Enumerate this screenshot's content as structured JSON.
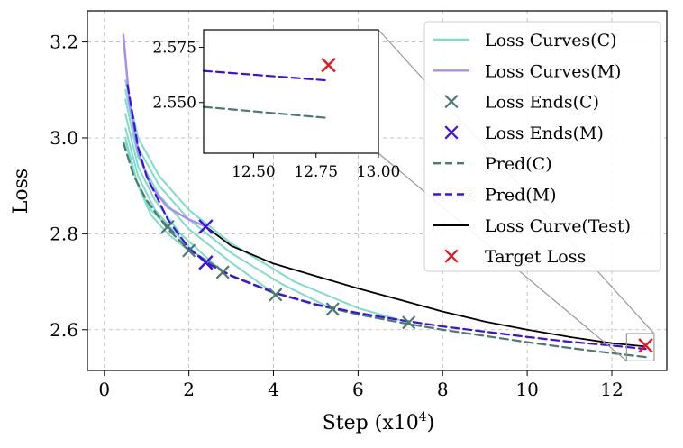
{
  "chart_data": {
    "type": "line",
    "title": "",
    "xlabel": "Step (x10",
    "xlabel_sup": "4",
    "xlabel_close": ")",
    "ylabel": "Loss",
    "xlim": [
      -0.4,
      13.3
    ],
    "ylim": [
      2.515,
      3.265
    ],
    "xticks": [
      0,
      2,
      4,
      6,
      8,
      10,
      12
    ],
    "yticks": [
      2.6,
      2.8,
      3.0,
      3.2
    ],
    "ytick_labels": [
      "2.6",
      "2.8",
      "3.0",
      "3.2"
    ],
    "grid": true,
    "colors": {
      "curves_c": "#7fdcc8",
      "curves_m": "#a98ef0",
      "ends_c": "#4a7a72",
      "ends_m": "#3d10e0",
      "pred_c": "#4a7a72",
      "pred_m": "#3d10e0",
      "test": "#000000",
      "target": "#e8141e"
    },
    "loss_curves_c": [
      {
        "x": [
          0.5,
          0.8,
          1.1,
          1.4,
          1.5
        ],
        "y": [
          2.99,
          2.9,
          2.85,
          2.825,
          2.815
        ]
      },
      {
        "x": [
          0.5,
          0.8,
          1.1,
          1.5,
          2.0
        ],
        "y": [
          3.0,
          2.9,
          2.84,
          2.8,
          2.765
        ]
      },
      {
        "x": [
          0.5,
          0.8,
          1.2,
          1.8,
          2.4
        ],
        "y": [
          3.02,
          2.92,
          2.85,
          2.79,
          2.74
        ]
      },
      {
        "x": [
          0.5,
          0.8,
          1.2,
          1.8,
          2.8
        ],
        "y": [
          3.05,
          2.94,
          2.87,
          2.8,
          2.72
        ]
      },
      {
        "x": [
          0.5,
          0.8,
          1.3,
          2.0,
          3.0,
          4.05
        ],
        "y": [
          3.08,
          2.96,
          2.88,
          2.81,
          2.74,
          2.673
        ]
      },
      {
        "x": [
          0.5,
          0.8,
          1.3,
          2.0,
          3.0,
          4.2,
          5.4
        ],
        "y": [
          3.1,
          2.98,
          2.9,
          2.83,
          2.76,
          2.695,
          2.643
        ]
      },
      {
        "x": [
          0.5,
          0.8,
          1.3,
          2.0,
          3.0,
          4.5,
          6.0,
          7.2
        ],
        "y": [
          3.12,
          3.0,
          2.92,
          2.85,
          2.78,
          2.7,
          2.645,
          2.615
        ]
      }
    ],
    "loss_curves_m": [
      {
        "x": [
          0.45,
          0.6,
          0.8,
          1.1,
          1.5,
          2.0,
          2.4
        ],
        "y": [
          3.215,
          3.07,
          2.97,
          2.9,
          2.855,
          2.83,
          2.815
        ]
      }
    ],
    "loss_ends_c": {
      "x": [
        1.5,
        2.0,
        2.4,
        2.8,
        4.05,
        5.4,
        7.2
      ],
      "y": [
        2.815,
        2.765,
        2.74,
        2.72,
        2.673,
        2.643,
        2.615
      ]
    },
    "loss_ends_m": {
      "x": [
        2.4,
        2.4
      ],
      "y": [
        2.815,
        2.74
      ]
    },
    "pred_c": {
      "x": [
        0.45,
        0.7,
        1.0,
        1.5,
        2.0,
        3.0,
        4.0,
        5.0,
        6.0,
        7.0,
        8.0,
        9.0,
        10.0,
        11.0,
        12.0,
        12.8
      ],
      "y": [
        2.99,
        2.92,
        2.87,
        2.81,
        2.767,
        2.712,
        2.677,
        2.652,
        2.632,
        2.615,
        2.6,
        2.587,
        2.574,
        2.562,
        2.551,
        2.543
      ]
    },
    "pred_m": {
      "x": [
        0.55,
        0.8,
        1.0,
        1.5,
        2.0,
        2.4,
        3.0,
        4.0,
        5.0,
        6.0,
        7.0,
        8.0,
        9.0,
        10.0,
        11.0,
        12.0,
        12.8
      ],
      "y": [
        3.11,
        2.98,
        2.92,
        2.83,
        2.77,
        2.74,
        2.713,
        2.678,
        2.653,
        2.635,
        2.62,
        2.607,
        2.596,
        2.585,
        2.575,
        2.567,
        2.56
      ]
    },
    "loss_curve_test": {
      "x": [
        2.4,
        3.0,
        4.0,
        5.0,
        6.0,
        7.0,
        8.0,
        9.0,
        10.0,
        11.0,
        12.0,
        12.8
      ],
      "y": [
        2.815,
        2.775,
        2.738,
        2.712,
        2.686,
        2.662,
        2.638,
        2.617,
        2.6,
        2.585,
        2.572,
        2.565
      ]
    },
    "target_loss": {
      "x": [
        12.8
      ],
      "y": [
        2.567
      ]
    },
    "inset": {
      "xlim": [
        12.3,
        13.0
      ],
      "ylim": [
        2.527,
        2.583
      ],
      "xticks": [
        12.5,
        12.75,
        13.0
      ],
      "xtick_labels": [
        "12.50",
        "12.75",
        "13.00"
      ],
      "yticks": [
        2.55,
        2.575
      ],
      "ytick_labels": [
        "2.550",
        "2.575"
      ],
      "zoom_box": {
        "x": [
          12.35,
          13.0
        ],
        "y": [
          2.535,
          2.592
        ]
      }
    },
    "legend": {
      "position": "top-right",
      "entries": [
        {
          "label": "Loss Curves(C)",
          "kind": "line",
          "color": "#7fdcc8",
          "dash": false
        },
        {
          "label": "Loss Curves(M)",
          "kind": "line",
          "color": "#a98ef0",
          "dash": false
        },
        {
          "label": "Loss Ends(C)",
          "kind": "x",
          "color": "#4a7a72"
        },
        {
          "label": "Loss Ends(M)",
          "kind": "x",
          "color": "#3d10e0"
        },
        {
          "label": "Pred(C)",
          "kind": "line",
          "color": "#4a7a72",
          "dash": true
        },
        {
          "label": "Pred(M)",
          "kind": "line",
          "color": "#3d10e0",
          "dash": true
        },
        {
          "label": "Loss Curve(Test)",
          "kind": "line",
          "color": "#000000",
          "dash": false
        },
        {
          "label": "Target Loss",
          "kind": "x",
          "color": "#e8141e"
        }
      ]
    }
  }
}
